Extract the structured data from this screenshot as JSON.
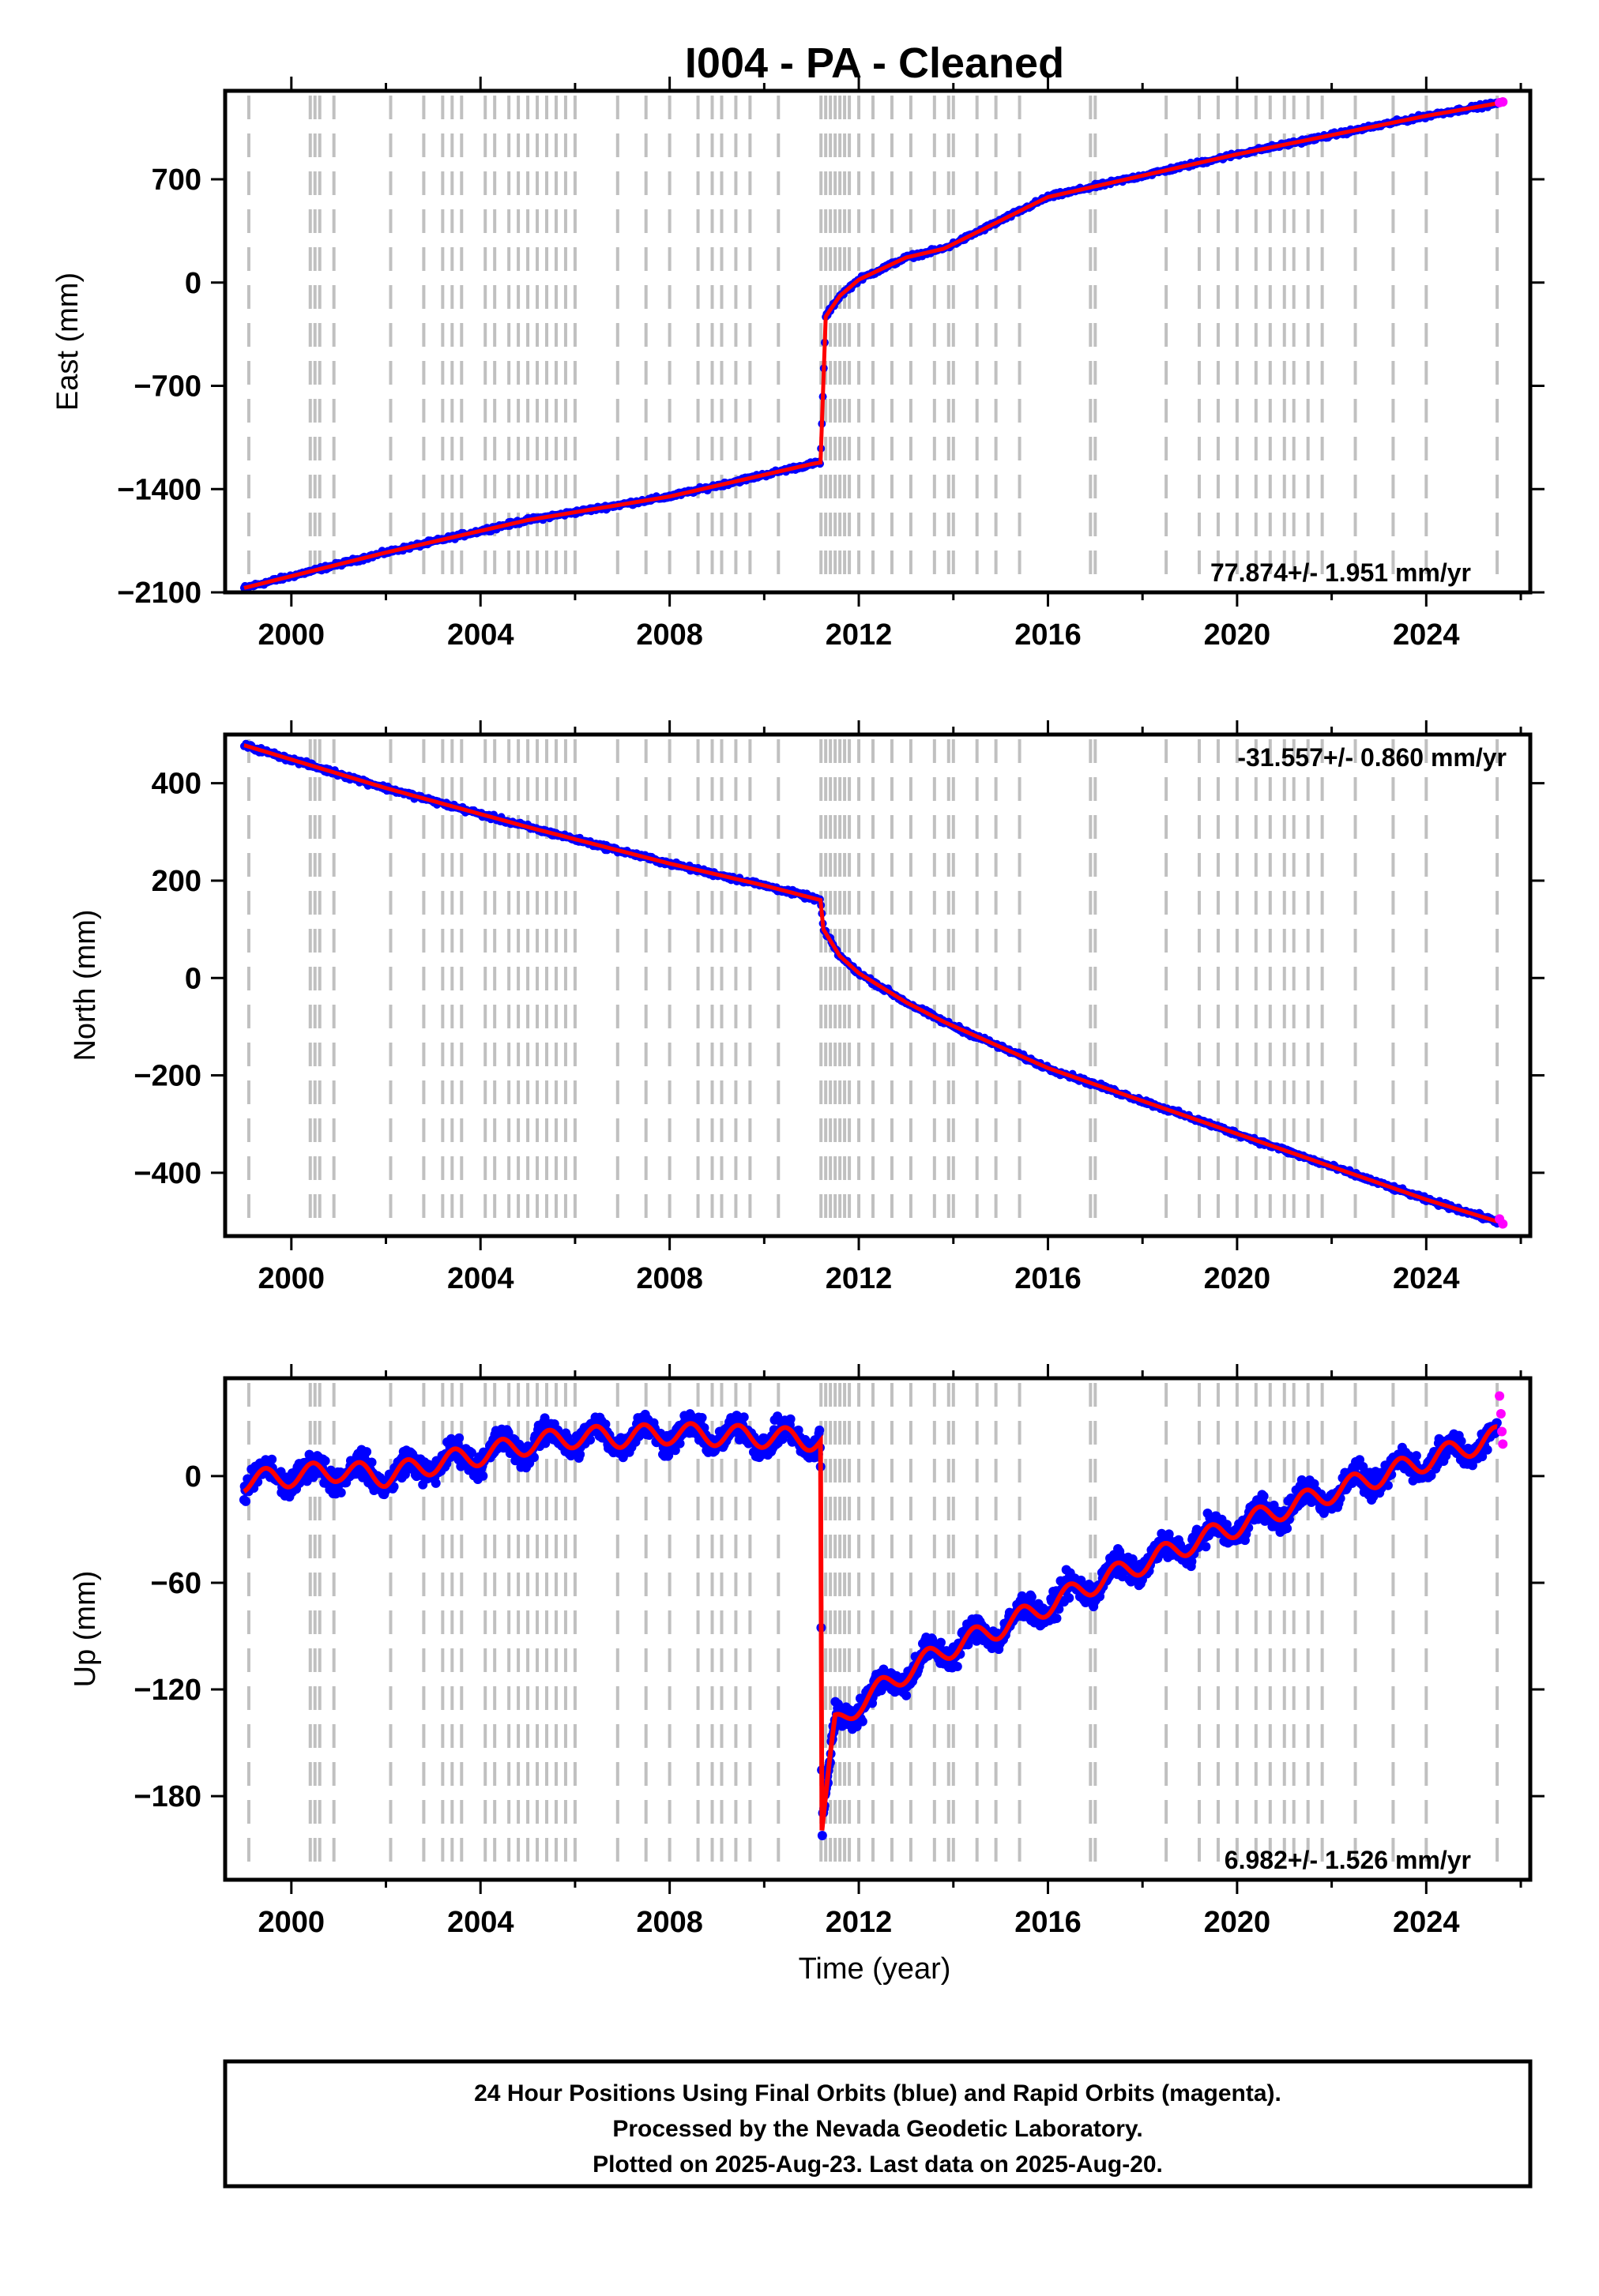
{
  "title": "I004  - PA - Cleaned",
  "xlabel": "Time (year)",
  "caption": {
    "lines": [
      "24 Hour Positions Using Final Orbits (blue) and Rapid Orbits (magenta).",
      "Processed by the Nevada Geodetic Laboratory.",
      "Plotted on 2025-Aug-23. Last data on 2025-Aug-20."
    ]
  },
  "colors": {
    "final_orbits": "#0000ff",
    "rapid_orbits": "#ff00ff",
    "model": "#ff0000",
    "event_lines": "#c0c0c0"
  },
  "chart_data": [
    {
      "type": "scatter",
      "ylabel": "East (mm)",
      "xlim": [
        1998.6,
        2026.2
      ],
      "ylim": [
        -2100,
        1300
      ],
      "xticks": [
        2000,
        2004,
        2008,
        2012,
        2016,
        2020,
        2024
      ],
      "yticks": [
        700,
        0,
        -700,
        -1400,
        -2100
      ],
      "rate_text": "77.874+/- 1.951 mm/yr",
      "rate_position": "bottom-right",
      "series": [
        {
          "name": "Final orbits",
          "color": "#0000ff",
          "x": [
            1999.0,
            2002.0,
            2005.0,
            2008.0,
            2011.0,
            2011.19,
            2011.3,
            2011.6,
            2012.0,
            2013.0,
            2013.8,
            2016.0,
            2020.0,
            2024.0,
            2025.5
          ],
          "y": [
            -2070,
            -1830,
            -1610,
            -1450,
            -1230,
            -1220,
            -230,
            -90,
            20,
            170,
            230,
            580,
            870,
            1130,
            1215
          ]
        },
        {
          "name": "Rapid orbits",
          "color": "#ff00ff",
          "x": [
            2025.55,
            2025.62
          ],
          "y": [
            1220,
            1225
          ]
        }
      ]
    },
    {
      "type": "scatter",
      "ylabel": "North (mm)",
      "xlim": [
        1998.6,
        2026.2
      ],
      "ylim": [
        -530,
        500
      ],
      "xticks": [
        2000,
        2004,
        2008,
        2012,
        2016,
        2020,
        2024
      ],
      "yticks": [
        400,
        200,
        0,
        -200,
        -400
      ],
      "rate_text": "-31.557+/- 0.860 mm/yr",
      "rate_position": "top-right",
      "series": [
        {
          "name": "Final orbits",
          "color": "#0000ff",
          "x": [
            1999.0,
            2002.0,
            2005.0,
            2008.0,
            2010.0,
            2011.19,
            2011.25,
            2011.6,
            2012.0,
            2013.0,
            2013.8,
            2016.0,
            2020.0,
            2024.0,
            2025.5
          ],
          "y": [
            478,
            390,
            310,
            235,
            190,
            160,
            100,
            45,
            10,
            -50,
            -90,
            -185,
            -320,
            -455,
            -500
          ]
        },
        {
          "name": "Rapid orbits",
          "color": "#ff00ff",
          "x": [
            2025.55,
            2025.62
          ],
          "y": [
            -495,
            -505
          ]
        }
      ]
    },
    {
      "type": "scatter",
      "ylabel": "Up (mm)",
      "xlim": [
        1998.6,
        2026.2
      ],
      "ylim": [
        -227,
        55
      ],
      "xticks": [
        2000,
        2004,
        2008,
        2012,
        2016,
        2020,
        2024
      ],
      "yticks": [
        0,
        -60,
        -120,
        -180
      ],
      "rate_text": "6.982+/- 1.526 mm/yr",
      "rate_position": "bottom-right",
      "series": [
        {
          "name": "Final orbits",
          "color": "#0000ff",
          "x": [
            1999.0,
            2000.0,
            2001.0,
            2002.0,
            2003.0,
            2004.0,
            2005.0,
            2006.0,
            2007.0,
            2008.0,
            2009.0,
            2010.0,
            2011.19,
            2011.22,
            2011.5,
            2012.0,
            2013.0,
            2013.8,
            2015.0,
            2017.0,
            2019.0,
            2021.0,
            2023.0,
            2025.5
          ],
          "y": [
            -3,
            0,
            3,
            0,
            7,
            12,
            18,
            22,
            22,
            24,
            23,
            22,
            20,
            -200,
            -140,
            -128,
            -110,
            -98,
            -85,
            -60,
            -38,
            -18,
            0,
            22
          ]
        },
        {
          "name": "Rapid orbits",
          "color": "#ff00ff",
          "x": [
            2025.55,
            2025.58,
            2025.6,
            2025.62
          ],
          "y": [
            45,
            35,
            25,
            18
          ]
        }
      ]
    }
  ]
}
